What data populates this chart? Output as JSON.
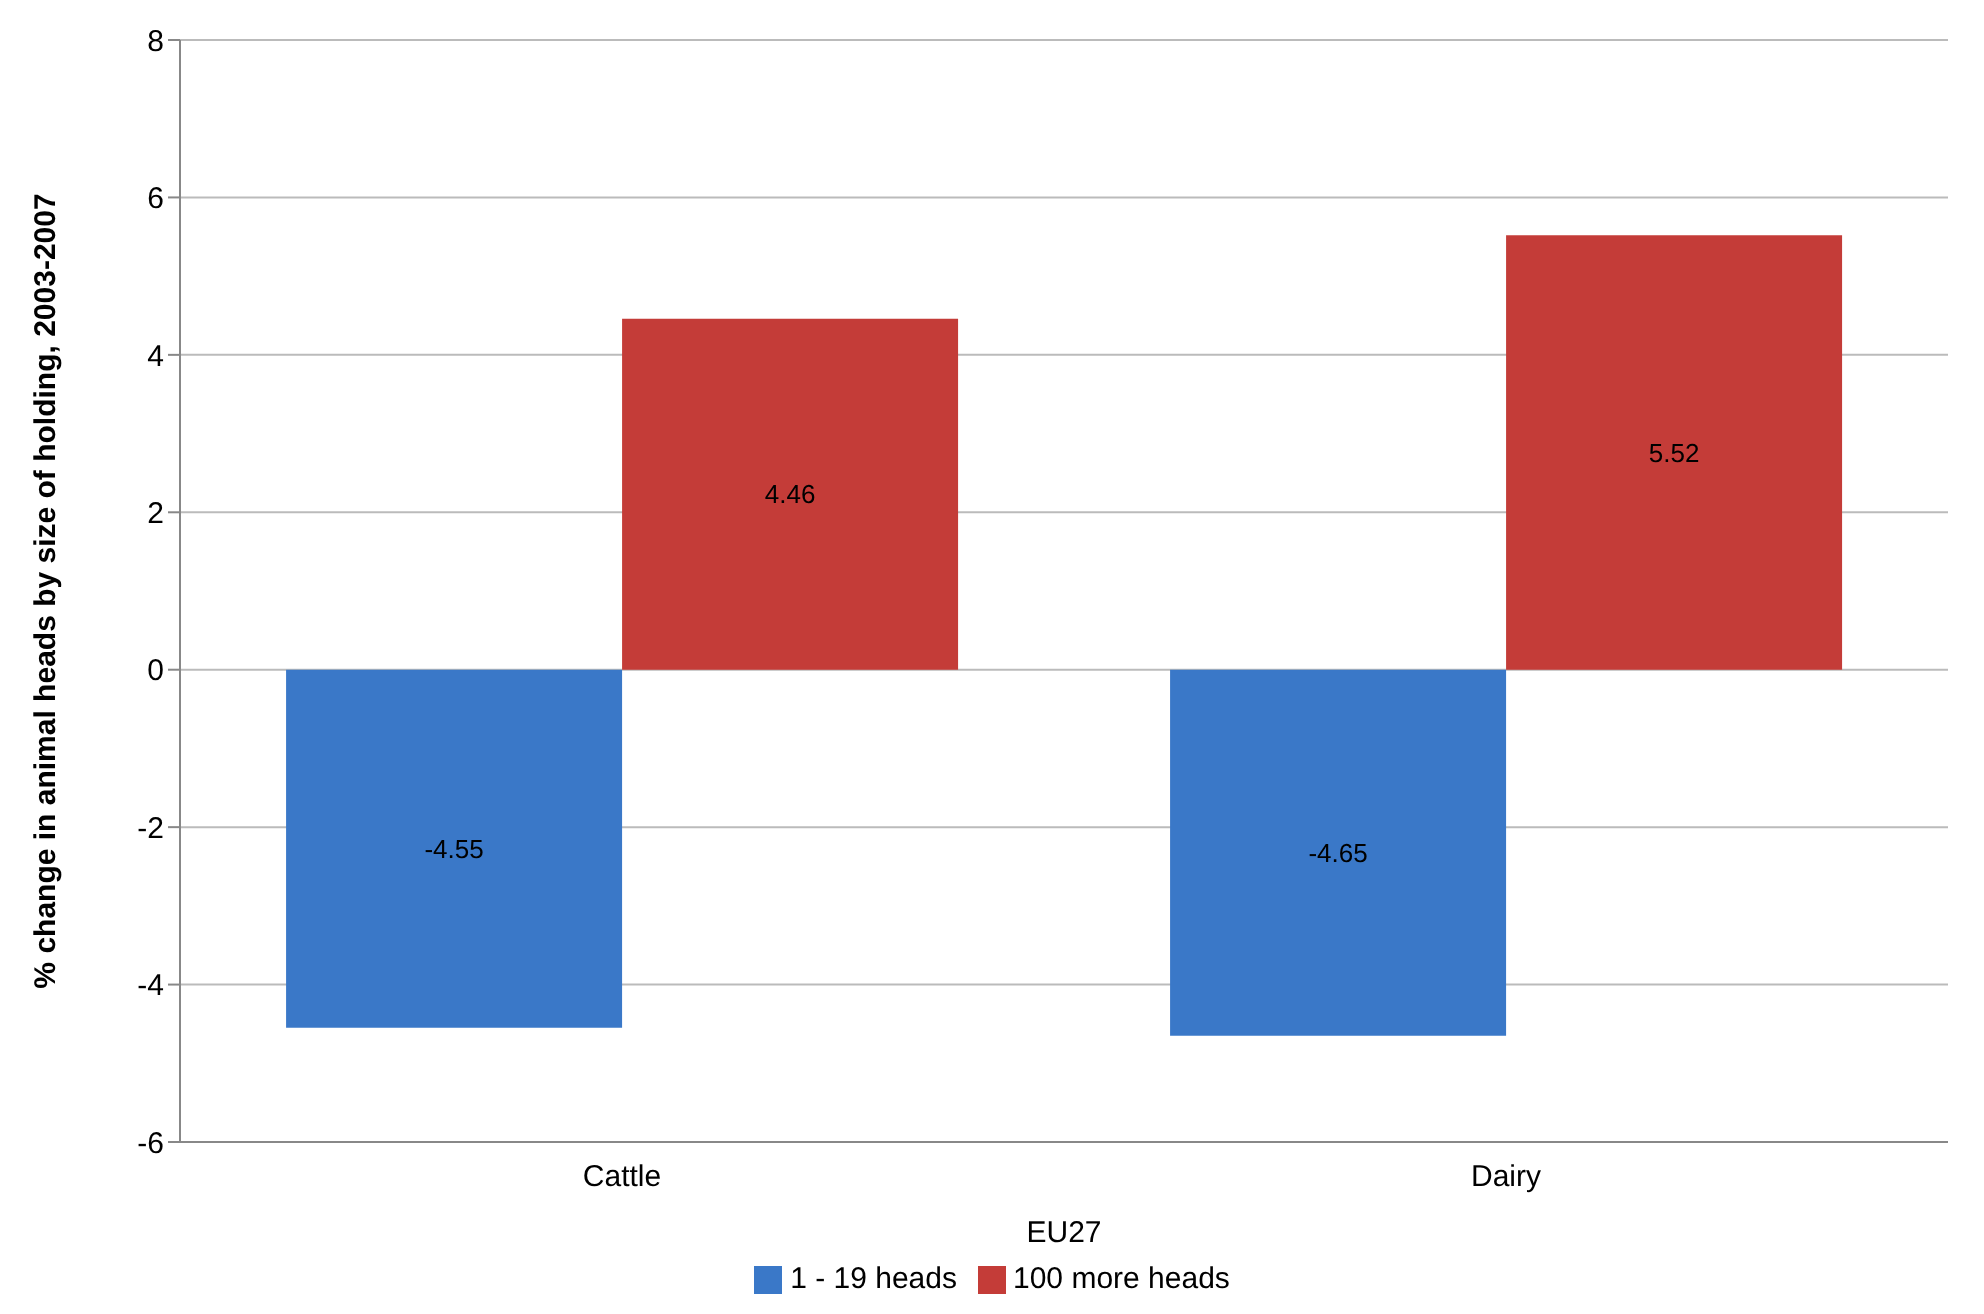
{
  "chart_data": {
    "type": "bar",
    "ylabel": "% change in animal heads by size of holding, 2003-2007",
    "categories": [
      "Cattle",
      "Dairy"
    ],
    "series": [
      {
        "name": "1 - 19 heads",
        "color": "#3a78c8",
        "values": [
          -4.55,
          -4.65
        ]
      },
      {
        "name": "100 more heads",
        "color": "#c43c38",
        "values": [
          4.46,
          5.52
        ]
      }
    ],
    "ylim": [
      -6,
      8
    ],
    "yticks": [
      -6,
      -4,
      -2,
      0,
      2,
      4,
      6,
      8
    ],
    "grid": "y",
    "legend": "bottom",
    "data_labels": true,
    "annotations": [
      "EU27"
    ]
  }
}
